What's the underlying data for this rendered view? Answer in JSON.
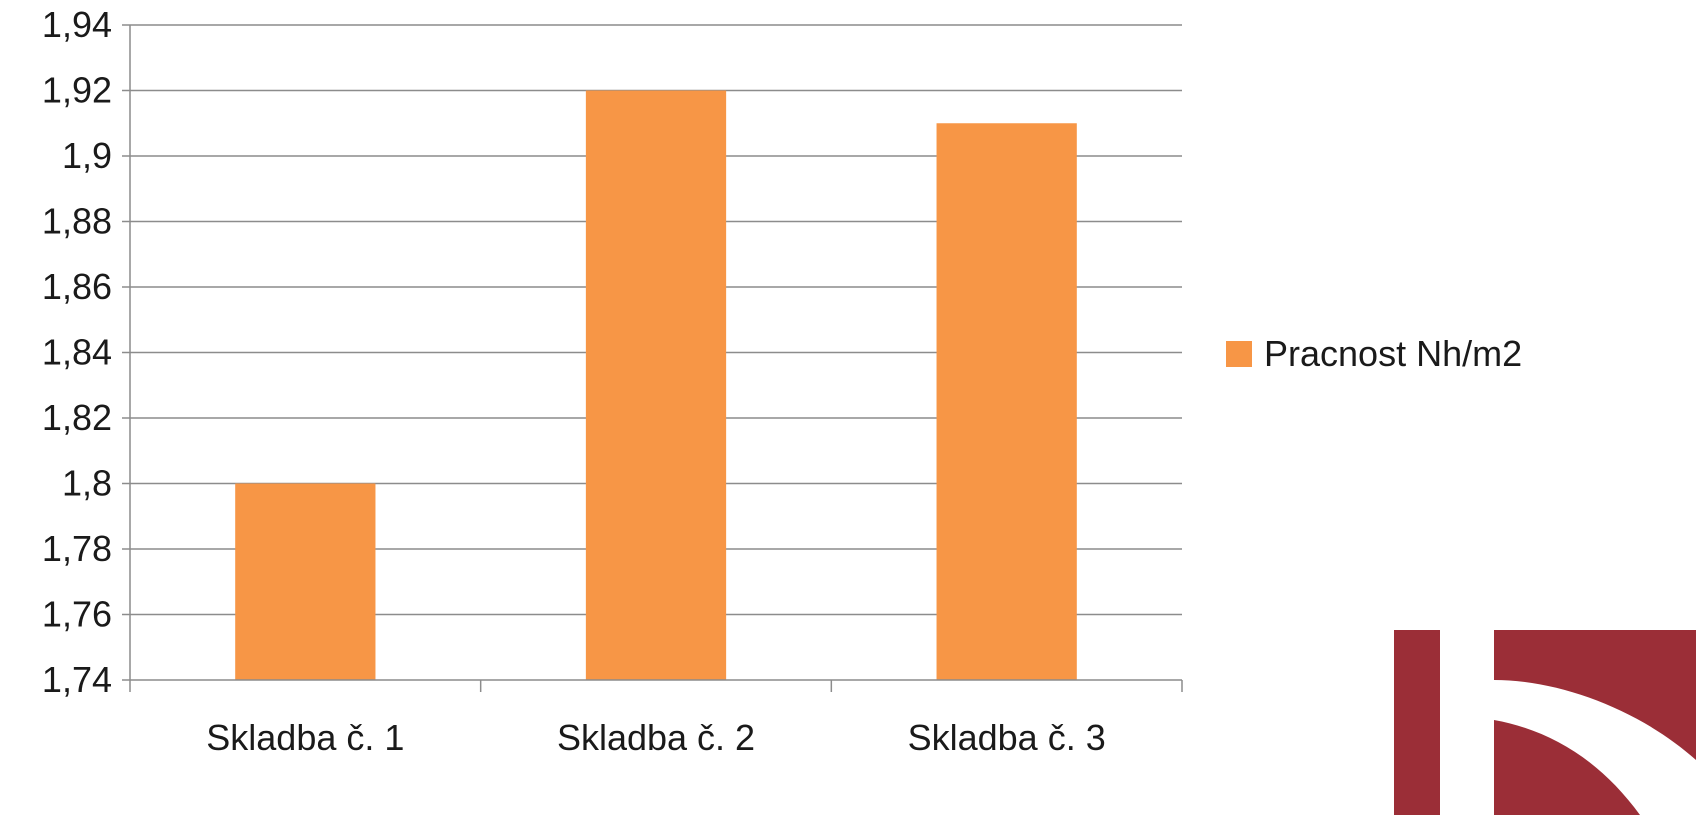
{
  "chart_data": {
    "type": "bar",
    "title": "",
    "xlabel": "",
    "ylabel": "",
    "categories": [
      "Skladba č. 1",
      "Skladba č. 2",
      "Skladba č. 3"
    ],
    "series": [
      {
        "name": "Pracnost Nh/m2",
        "values": [
          1.8,
          1.92,
          1.91
        ],
        "color": "#F79646"
      }
    ],
    "ylim": [
      1.74,
      1.94
    ],
    "yticks": [
      "1,74",
      "1,76",
      "1,78",
      "1,8",
      "1,82",
      "1,84",
      "1,86",
      "1,88",
      "1,9",
      "1,92",
      "1,94"
    ],
    "grid": true,
    "legend_position": "right"
  },
  "logo": {
    "name": "corner-logo",
    "colors": [
      "#9B2E37",
      "#ffffff"
    ]
  }
}
